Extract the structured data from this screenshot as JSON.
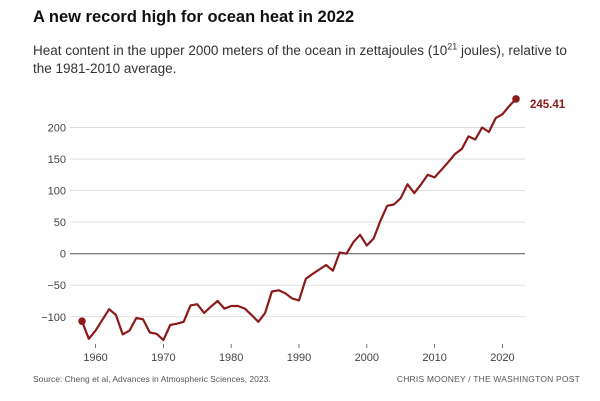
{
  "title": "A new record high for ocean heat in 2022",
  "subtitle_pre": "Heat content in the upper 2000 meters of the ocean in zettajoules (10",
  "subtitle_sup": "21",
  "subtitle_post": " joules), relative to the 1981-2010 average.",
  "source": "Source: Cheng et al, Advances in Atmospheric Sciences, 2023.",
  "credit": "Chris Mooney / The Washington Post",
  "chart_data": {
    "type": "line",
    "title": "A new record high for ocean heat in 2022",
    "xlabel": "",
    "ylabel": "",
    "xlim": [
      1958,
      2022
    ],
    "ylim": [
      -140,
      250
    ],
    "x_ticks": [
      1960,
      1970,
      1980,
      1990,
      2000,
      2010,
      2020
    ],
    "y_ticks": [
      -100,
      -50,
      0,
      50,
      100,
      150,
      200
    ],
    "grid": "horizontal",
    "color": "#8b1a1a",
    "last_label": "245.41",
    "series": [
      {
        "x": [
          1958,
          1959,
          1960,
          1961,
          1962,
          1963,
          1964,
          1965,
          1966,
          1967,
          1968,
          1969,
          1970,
          1971,
          1972,
          1973,
          1974,
          1975,
          1976,
          1977,
          1978,
          1979,
          1980,
          1981,
          1982,
          1983,
          1984,
          1985,
          1986,
          1987,
          1988,
          1989,
          1990,
          1991,
          1992,
          1993,
          1994,
          1995,
          1996,
          1997,
          1998,
          1999,
          2000,
          2001,
          2002,
          2003,
          2004,
          2005,
          2006,
          2007,
          2008,
          2009,
          2010,
          2011,
          2012,
          2013,
          2014,
          2015,
          2016,
          2017,
          2018,
          2019,
          2020,
          2021,
          2022
        ],
        "y": [
          -107,
          -135,
          -122,
          -105,
          -88,
          -97,
          -128,
          -122,
          -102,
          -104,
          -125,
          -127,
          -137,
          -113,
          -111,
          -108,
          -82,
          -80,
          -94,
          -84,
          -75,
          -87,
          -83,
          -83,
          -87,
          -97,
          -108,
          -94,
          -60,
          -58,
          -63,
          -71,
          -74,
          -40,
          -32,
          -25,
          -18,
          -27,
          2,
          0,
          18,
          30,
          13,
          24,
          52,
          76,
          78,
          88,
          110,
          96,
          110,
          125,
          121,
          133,
          145,
          158,
          166,
          186,
          181,
          200,
          193,
          215,
          221,
          234,
          245.41
        ]
      }
    ]
  }
}
